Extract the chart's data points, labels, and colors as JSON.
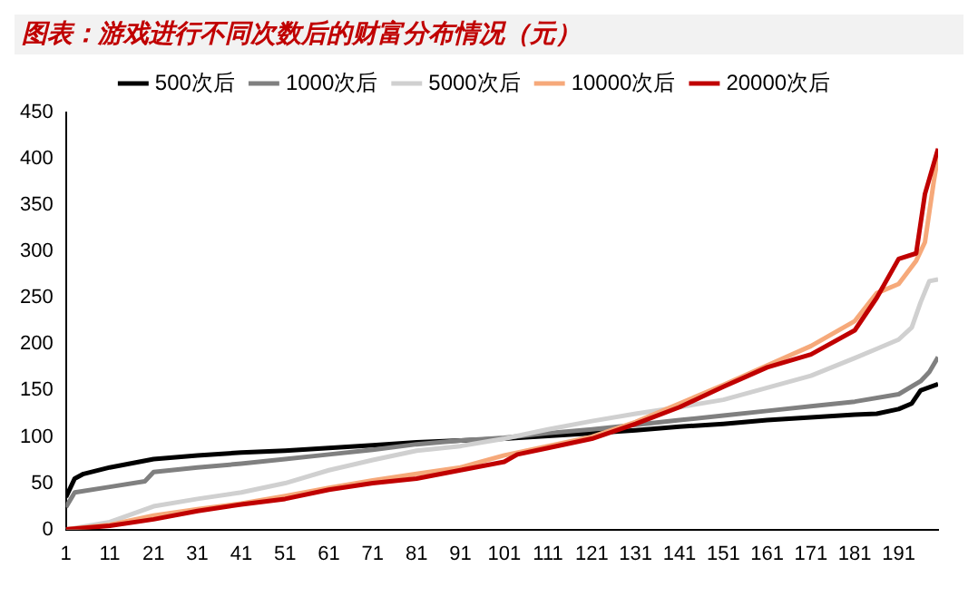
{
  "chart_data": {
    "type": "line",
    "title": "图表：游戏进行不同次数后的财富分布情况（元）",
    "legend": "top",
    "marker": "none",
    "line_style": "solid",
    "xlim": [
      1,
      200
    ],
    "xticks": [
      1,
      11,
      21,
      31,
      41,
      51,
      61,
      71,
      81,
      91,
      101,
      111,
      121,
      131,
      141,
      151,
      161,
      171,
      181,
      191
    ],
    "ylim": [
      0,
      450
    ],
    "yticks": [
      0,
      50,
      100,
      150,
      200,
      250,
      300,
      350,
      400,
      450
    ],
    "series": [
      {
        "name": "500次后",
        "color": "#000000",
        "x": [
          1,
          3,
          5,
          11,
          21,
          31,
          41,
          51,
          61,
          71,
          81,
          91,
          101,
          111,
          121,
          131,
          141,
          151,
          161,
          171,
          181,
          186,
          191,
          194,
          196,
          200
        ],
        "values": [
          35,
          55,
          60,
          67,
          76,
          80,
          83,
          85,
          88,
          91,
          94,
          96,
          98,
          101,
          104,
          107,
          111,
          114,
          118,
          121,
          124,
          125,
          130,
          136,
          150,
          157
        ]
      },
      {
        "name": "1000次后",
        "color": "#808080",
        "x": [
          1,
          3,
          11,
          19,
          21,
          31,
          41,
          51,
          61,
          71,
          81,
          91,
          101,
          111,
          121,
          131,
          141,
          151,
          161,
          171,
          181,
          191,
          196,
          198,
          200
        ],
        "values": [
          24,
          40,
          46,
          52,
          62,
          67,
          71,
          76,
          81,
          86,
          92,
          96,
          99,
          104,
          108,
          113,
          118,
          123,
          128,
          133,
          138,
          146,
          160,
          170,
          186
        ]
      },
      {
        "name": "5000次后",
        "color": "#d0d0d0",
        "x": [
          1,
          11,
          21,
          31,
          41,
          51,
          61,
          71,
          81,
          91,
          101,
          111,
          121,
          131,
          141,
          151,
          161,
          171,
          181,
          186,
          191,
          194,
          196,
          198,
          200
        ],
        "values": [
          0,
          8,
          25,
          33,
          40,
          50,
          64,
          75,
          85,
          90,
          98,
          108,
          117,
          125,
          132,
          140,
          153,
          166,
          185,
          195,
          205,
          218,
          245,
          268,
          270
        ]
      },
      {
        "name": "10000次后",
        "color": "#f6a97a",
        "x": [
          1,
          11,
          21,
          31,
          41,
          51,
          61,
          71,
          81,
          91,
          101,
          111,
          121,
          131,
          141,
          151,
          161,
          171,
          181,
          186,
          191,
          195,
          197,
          199,
          200
        ],
        "values": [
          0,
          5,
          15,
          22,
          28,
          36,
          45,
          53,
          60,
          67,
          80,
          90,
          100,
          116,
          136,
          156,
          177,
          198,
          225,
          255,
          265,
          290,
          310,
          375,
          403
        ]
      },
      {
        "name": "20000次后",
        "color": "#c00000",
        "x": [
          1,
          11,
          21,
          31,
          41,
          51,
          61,
          71,
          81,
          91,
          101,
          104,
          111,
          121,
          131,
          141,
          151,
          161,
          171,
          181,
          186,
          191,
          195,
          197,
          200
        ],
        "values": [
          0,
          4,
          11,
          20,
          27,
          33,
          43,
          50,
          55,
          64,
          73,
          81,
          88,
          98,
          114,
          132,
          154,
          175,
          189,
          215,
          250,
          292,
          298,
          362,
          411
        ]
      }
    ]
  }
}
